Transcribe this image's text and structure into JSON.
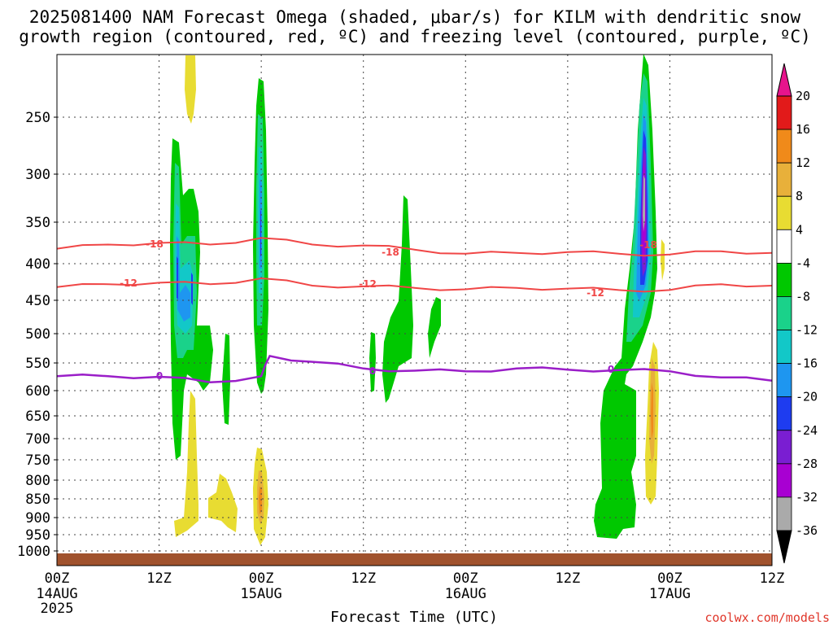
{
  "title": {
    "line1": "2025081400 NAM Forecast Omega (shaded, μbar/s) for KILM with dendritic snow",
    "line2": "growth region (contoured, red, ºC) and freezing level (contoured, purple, ºC)"
  },
  "x_axis": {
    "title": "Forecast Time (UTC)",
    "ticks": [
      {
        "line1": "00Z",
        "line2": "14AUG",
        "line3": "2025"
      },
      {
        "line1": "12Z",
        "line2": "",
        "line3": ""
      },
      {
        "line1": "00Z",
        "line2": "15AUG",
        "line3": ""
      },
      {
        "line1": "12Z",
        "line2": "",
        "line3": ""
      },
      {
        "line1": "00Z",
        "line2": "16AUG",
        "line3": ""
      },
      {
        "line1": "12Z",
        "line2": "",
        "line3": ""
      },
      {
        "line1": "00Z",
        "line2": "17AUG",
        "line3": ""
      },
      {
        "line1": "12Z",
        "line2": "",
        "line3": ""
      }
    ]
  },
  "y_axis": {
    "ticks": [
      "250",
      "300",
      "350",
      "400",
      "450",
      "500",
      "550",
      "600",
      "650",
      "700",
      "750",
      "800",
      "850",
      "900",
      "950",
      "1000"
    ]
  },
  "colorbar": {
    "labels": [
      "20",
      "16",
      "12",
      "8",
      "4",
      "-4",
      "-8",
      "-12",
      "-16",
      "-20",
      "-24",
      "-28",
      "-32",
      "-36"
    ],
    "colors": [
      "#e21a1a",
      "#f08a1a",
      "#e8b03a",
      "#e8dc32",
      "#ffffff",
      "#00c800",
      "#1ad28a",
      "#12c8c8",
      "#1e96f0",
      "#1e3cf0",
      "#7a1ed2",
      "#a800d2",
      "#aaaaaa"
    ],
    "top_arrow_color": "#e6148c",
    "bottom_arrow_color": "#000000"
  },
  "contours": {
    "dgz_labels": [
      "-18",
      "-18",
      "-18",
      "-12",
      "-12",
      "-12"
    ],
    "freezing_labels": [
      "0",
      "0",
      "0"
    ],
    "dgz_color": "#f04646",
    "freezing_color": "#9a1ec8"
  },
  "credit": "coolwx.com/models",
  "chart_data": {
    "type": "heatmap",
    "title": "2025081400 NAM Forecast Omega (shaded, μbar/s) for KILM with dendritic snow growth region (contoured, red, ºC) and freezing level (contoured, purple, ºC)",
    "xlabel": "Forecast Time (UTC)",
    "ylabel": "",
    "x_ticks": [
      "00Z 14AUG 2025",
      "12Z",
      "00Z 15AUG",
      "12Z",
      "00Z 16AUG",
      "12Z",
      "00Z 17AUG",
      "12Z"
    ],
    "y_ticks": [
      250,
      300,
      350,
      400,
      450,
      500,
      550,
      600,
      650,
      700,
      750,
      800,
      850,
      900,
      950,
      1000
    ],
    "y_scale": "pressure (inverted)",
    "x_range_hours": [
      0,
      84
    ],
    "omega_levels": [
      20,
      16,
      12,
      8,
      4,
      -4,
      -8,
      -12,
      -16,
      -20,
      -24,
      -28,
      -32,
      -36
    ],
    "series": [
      {
        "name": "-18",
        "hour": [
          0,
          6,
          12,
          18,
          24,
          30,
          36,
          42,
          48,
          54,
          60,
          66,
          72,
          78,
          84
        ],
        "pressure": [
          382,
          377,
          375,
          377,
          369,
          377,
          378,
          383,
          388,
          387,
          386,
          388,
          389,
          385,
          387
        ]
      },
      {
        "name": "-12",
        "hour": [
          0,
          6,
          12,
          18,
          24,
          30,
          36,
          42,
          48,
          54,
          60,
          66,
          72,
          78,
          84
        ],
        "pressure": [
          432,
          428,
          426,
          428,
          420,
          430,
          431,
          433,
          435,
          433,
          434,
          436,
          436,
          428,
          430
        ]
      },
      {
        "name": "0",
        "hour": [
          0,
          6,
          12,
          18,
          24,
          25,
          30,
          36,
          42,
          48,
          54,
          60,
          66,
          72,
          78,
          84
        ],
        "pressure": [
          574,
          574,
          575,
          585,
          574,
          538,
          548,
          560,
          564,
          565,
          560,
          562,
          563,
          565,
          576,
          582
        ]
      }
    ],
    "grid": true
  }
}
